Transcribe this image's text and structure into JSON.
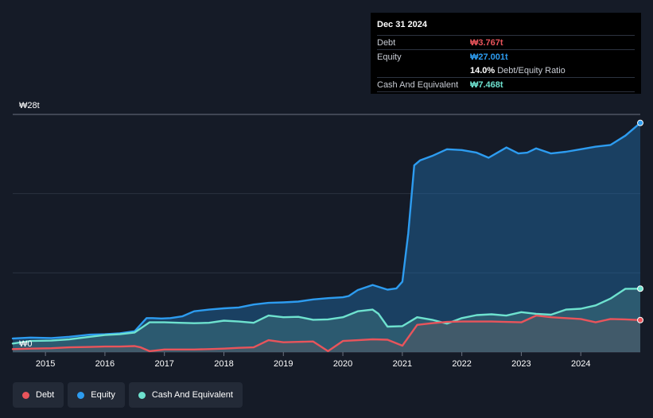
{
  "tooltip": {
    "date": "Dec 31 2024",
    "debt_label": "Debt",
    "debt_value": "₩3.767t",
    "equity_label": "Equity",
    "equity_value": "₩27.001t",
    "ratio_value": "14.0%",
    "ratio_label": "Debt/Equity Ratio",
    "cash_label": "Cash And Equivalent",
    "cash_value": "₩7.468t"
  },
  "legend": {
    "debt": "Debt",
    "equity": "Equity",
    "cash": "Cash And Equivalent"
  },
  "colors": {
    "debt": "#e9545b",
    "equity": "#2d9cf0",
    "cash": "#6ee2cf",
    "background": "#151b27"
  },
  "chart_data": {
    "type": "area",
    "y_tick_labels": [
      "₩0",
      "₩28t"
    ],
    "ylim": [
      0,
      28
    ],
    "xlim": [
      2014.45,
      2025.0
    ],
    "x_tick_labels": [
      "2015",
      "2016",
      "2017",
      "2018",
      "2019",
      "2020",
      "2021",
      "2022",
      "2023",
      "2024"
    ],
    "x_ticks": [
      2015,
      2016,
      2017,
      2018,
      2019,
      2020,
      2021,
      2022,
      2023,
      2024
    ],
    "grid": true,
    "legend_position": "bottom-left",
    "series": [
      {
        "name": "Equity",
        "points": [
          [
            2014.45,
            1.6
          ],
          [
            2014.75,
            1.7
          ],
          [
            2015.1,
            1.65
          ],
          [
            2015.4,
            1.8
          ],
          [
            2015.75,
            2.05
          ],
          [
            2016.0,
            2.1
          ],
          [
            2016.25,
            2.2
          ],
          [
            2016.5,
            2.45
          ],
          [
            2016.7,
            4.0
          ],
          [
            2016.8,
            4.0
          ],
          [
            2016.95,
            3.95
          ],
          [
            2017.1,
            4.0
          ],
          [
            2017.3,
            4.2
          ],
          [
            2017.5,
            4.8
          ],
          [
            2017.75,
            5.0
          ],
          [
            2018.0,
            5.15
          ],
          [
            2018.25,
            5.25
          ],
          [
            2018.5,
            5.6
          ],
          [
            2018.75,
            5.8
          ],
          [
            2019.0,
            5.85
          ],
          [
            2019.25,
            5.95
          ],
          [
            2019.5,
            6.2
          ],
          [
            2019.75,
            6.35
          ],
          [
            2020.0,
            6.45
          ],
          [
            2020.1,
            6.6
          ],
          [
            2020.25,
            7.3
          ],
          [
            2020.5,
            7.9
          ],
          [
            2020.75,
            7.35
          ],
          [
            2020.9,
            7.5
          ],
          [
            2021.0,
            8.3
          ],
          [
            2021.1,
            14.0
          ],
          [
            2021.2,
            22.0
          ],
          [
            2021.3,
            22.6
          ],
          [
            2021.5,
            23.1
          ],
          [
            2021.75,
            23.9
          ],
          [
            2022.0,
            23.8
          ],
          [
            2022.25,
            23.5
          ],
          [
            2022.45,
            22.9
          ],
          [
            2022.6,
            23.5
          ],
          [
            2022.75,
            24.1
          ],
          [
            2022.95,
            23.4
          ],
          [
            2023.1,
            23.5
          ],
          [
            2023.25,
            24.0
          ],
          [
            2023.5,
            23.4
          ],
          [
            2023.75,
            23.6
          ],
          [
            2024.0,
            23.9
          ],
          [
            2024.25,
            24.2
          ],
          [
            2024.5,
            24.4
          ],
          [
            2024.75,
            25.5
          ],
          [
            2025.0,
            27.001
          ]
        ]
      },
      {
        "name": "Cash And Equivalent",
        "points": [
          [
            2014.45,
            1.0
          ],
          [
            2014.75,
            1.3
          ],
          [
            2015.1,
            1.35
          ],
          [
            2015.4,
            1.5
          ],
          [
            2015.75,
            1.8
          ],
          [
            2016.0,
            2.0
          ],
          [
            2016.25,
            2.1
          ],
          [
            2016.5,
            2.3
          ],
          [
            2016.75,
            3.5
          ],
          [
            2017.0,
            3.5
          ],
          [
            2017.25,
            3.45
          ],
          [
            2017.5,
            3.4
          ],
          [
            2017.75,
            3.45
          ],
          [
            2018.0,
            3.7
          ],
          [
            2018.25,
            3.6
          ],
          [
            2018.5,
            3.45
          ],
          [
            2018.75,
            4.3
          ],
          [
            2019.0,
            4.1
          ],
          [
            2019.25,
            4.15
          ],
          [
            2019.5,
            3.8
          ],
          [
            2019.75,
            3.85
          ],
          [
            2020.0,
            4.1
          ],
          [
            2020.25,
            4.8
          ],
          [
            2020.5,
            5.0
          ],
          [
            2020.6,
            4.5
          ],
          [
            2020.75,
            3.0
          ],
          [
            2021.0,
            3.05
          ],
          [
            2021.25,
            4.1
          ],
          [
            2021.5,
            3.8
          ],
          [
            2021.75,
            3.35
          ],
          [
            2022.0,
            4.0
          ],
          [
            2022.25,
            4.35
          ],
          [
            2022.5,
            4.45
          ],
          [
            2022.75,
            4.3
          ],
          [
            2023.0,
            4.7
          ],
          [
            2023.25,
            4.5
          ],
          [
            2023.5,
            4.4
          ],
          [
            2023.75,
            5.0
          ],
          [
            2024.0,
            5.1
          ],
          [
            2024.25,
            5.5
          ],
          [
            2024.5,
            6.3
          ],
          [
            2024.75,
            7.45
          ],
          [
            2025.0,
            7.468
          ]
        ]
      },
      {
        "name": "Debt",
        "points": [
          [
            2014.45,
            0.35
          ],
          [
            2014.75,
            0.4
          ],
          [
            2015.1,
            0.45
          ],
          [
            2015.4,
            0.55
          ],
          [
            2015.75,
            0.6
          ],
          [
            2016.0,
            0.65
          ],
          [
            2016.25,
            0.65
          ],
          [
            2016.5,
            0.7
          ],
          [
            2016.6,
            0.55
          ],
          [
            2016.75,
            0.1
          ],
          [
            2017.0,
            0.3
          ],
          [
            2017.25,
            0.3
          ],
          [
            2017.5,
            0.3
          ],
          [
            2017.75,
            0.35
          ],
          [
            2018.0,
            0.4
          ],
          [
            2018.25,
            0.5
          ],
          [
            2018.5,
            0.55
          ],
          [
            2018.75,
            1.4
          ],
          [
            2019.0,
            1.15
          ],
          [
            2019.25,
            1.2
          ],
          [
            2019.5,
            1.25
          ],
          [
            2019.75,
            0.1
          ],
          [
            2020.0,
            1.3
          ],
          [
            2020.25,
            1.4
          ],
          [
            2020.5,
            1.5
          ],
          [
            2020.75,
            1.45
          ],
          [
            2021.0,
            0.75
          ],
          [
            2021.25,
            3.2
          ],
          [
            2021.5,
            3.4
          ],
          [
            2021.75,
            3.55
          ],
          [
            2022.0,
            3.6
          ],
          [
            2022.25,
            3.6
          ],
          [
            2022.5,
            3.6
          ],
          [
            2022.75,
            3.55
          ],
          [
            2023.0,
            3.5
          ],
          [
            2023.25,
            4.3
          ],
          [
            2023.5,
            4.1
          ],
          [
            2023.75,
            4.0
          ],
          [
            2024.0,
            3.9
          ],
          [
            2024.25,
            3.5
          ],
          [
            2024.5,
            3.9
          ],
          [
            2024.75,
            3.85
          ],
          [
            2025.0,
            3.767
          ]
        ]
      }
    ]
  }
}
